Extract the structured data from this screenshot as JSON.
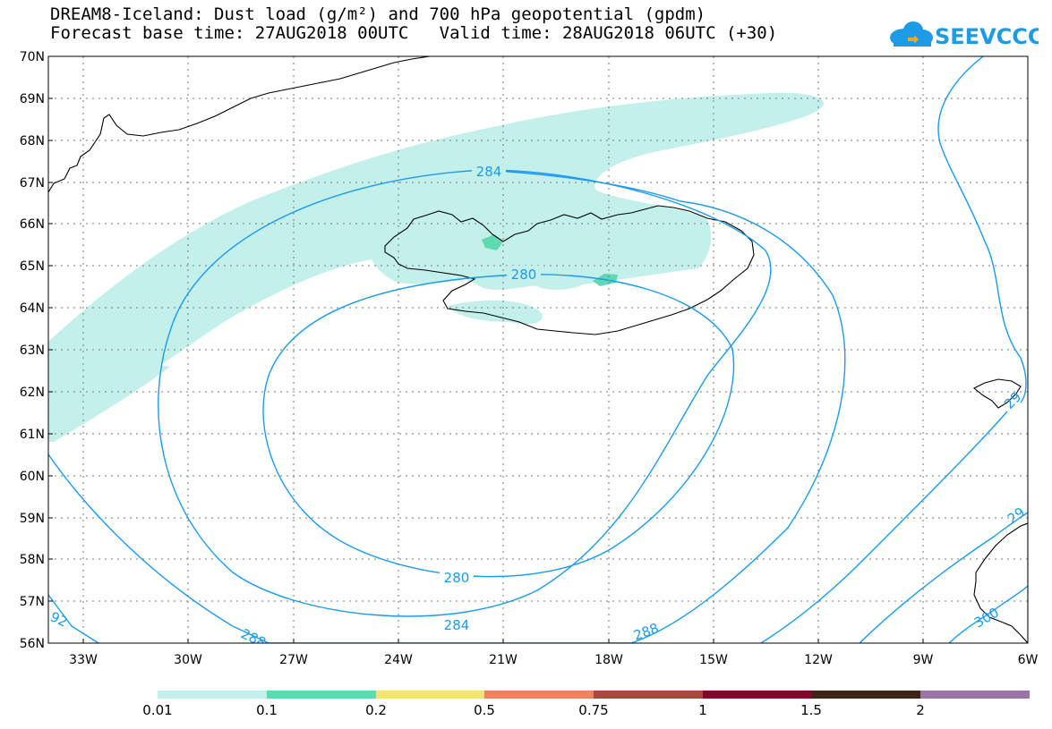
{
  "title_line1": "DREAM8-Iceland: Dust load (g/m²) and 700 hPa geopotential (gpdm)",
  "title_line2": "Forecast base time: 27AUG2018 00UTC   Valid time: 28AUG2018 06UTC (+30)",
  "logo_text": "SEEVCCC",
  "logo_colors": {
    "cloud": "#1e9be6",
    "arrow": "#f5a623"
  },
  "lat_labels": [
    "70N",
    "69N",
    "68N",
    "67N",
    "66N",
    "65N",
    "64N",
    "63N",
    "62N",
    "61N",
    "60N",
    "59N",
    "58N",
    "57N",
    "56N"
  ],
  "lon_labels": [
    "33W",
    "30W",
    "27W",
    "24W",
    "21W",
    "18W",
    "15W",
    "12W",
    "9W",
    "6W"
  ],
  "contour_labels": {
    "inner_top": "280",
    "inner_bottom": "280",
    "mid_top": "284",
    "mid_bottom": "284",
    "outer_bottom": "288",
    "outer_left": "288",
    "edge_left": "92",
    "edge_bottom_right": "300",
    "edge_right_a": "29",
    "edge_right_b": "29"
  },
  "colors": {
    "contour": "#1a9bef",
    "dust_0_01": "#c3f0ea",
    "dust_0_1": "#5fd9b0"
  },
  "legend": {
    "labels": [
      "0.01",
      "0.1",
      "0.2",
      "0.5",
      "0.75",
      "1",
      "1.5",
      "2"
    ],
    "colors": [
      "#c3f0ea",
      "#5fd9b0",
      "#f4e27a",
      "#e8875f",
      "#a8493f",
      "#7a0b2b",
      "#3c2417",
      "#9a75a5"
    ]
  }
}
